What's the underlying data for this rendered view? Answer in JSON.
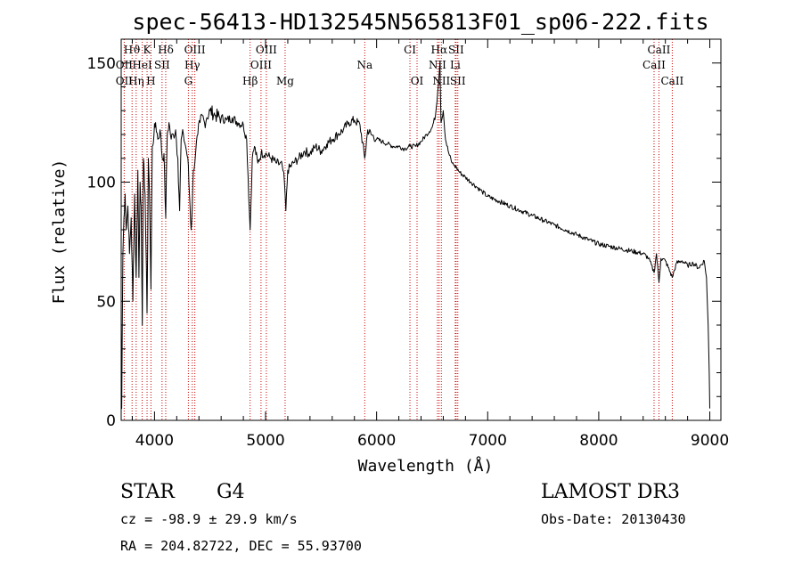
{
  "chart_data": {
    "type": "line",
    "title": "spec-56413-HD132545N565813F01_sp06-222.fits",
    "xlabel": "Wavelength (Å)",
    "ylabel": "Flux (relative)",
    "xlim": [
      3700,
      9100
    ],
    "ylim": [
      0,
      160
    ],
    "xticks": [
      4000,
      5000,
      6000,
      7000,
      8000,
      9000
    ],
    "xtick_labels": [
      "4000",
      "5000",
      "6000",
      "7000",
      "8000",
      "9000"
    ],
    "yticks": [
      0,
      50,
      100,
      150
    ],
    "ytick_labels": [
      "0",
      "50",
      "100",
      "150"
    ],
    "grid": false,
    "legend": "none",
    "colors": {
      "spectrum": "#000000",
      "lines": "#cc0000"
    },
    "series": [
      {
        "x": [
          3700,
          3705,
          3715,
          3725,
          3735,
          3745,
          3760,
          3775,
          3790,
          3805,
          3820,
          3835,
          3850,
          3860,
          3870,
          3880,
          3890,
          3900,
          3915,
          3933,
          3945,
          3955,
          3968,
          3980,
          3995,
          4010,
          4030,
          4050,
          4070,
          4085,
          4101,
          4115,
          4130,
          4150,
          4170,
          4190,
          4210,
          4226,
          4240,
          4260,
          4280,
          4300,
          4315,
          4330,
          4340,
          4350,
          4370,
          4390,
          4410,
          4430,
          4450,
          4470,
          4500,
          4550,
          4600,
          4650,
          4700,
          4750,
          4800,
          4830,
          4861,
          4880,
          4900,
          4930,
          4960,
          5000,
          5050,
          5100,
          5150,
          5170,
          5183,
          5200,
          5250,
          5300,
          5350,
          5400,
          5450,
          5500,
          5550,
          5600,
          5650,
          5700,
          5750,
          5800,
          5850,
          5893,
          5920,
          5950,
          6000,
          6050,
          6100,
          6150,
          6200,
          6250,
          6300,
          6350,
          6400,
          6450,
          6500,
          6530,
          6550,
          6563,
          6570,
          6580,
          6600,
          6620,
          6650,
          6680,
          6700,
          6720,
          6750,
          6800,
          6850,
          6900,
          6950,
          7000,
          7100,
          7200,
          7300,
          7400,
          7500,
          7600,
          7700,
          7800,
          7900,
          8000,
          8100,
          8200,
          8300,
          8400,
          8450,
          8498,
          8520,
          8542,
          8560,
          8600,
          8662,
          8700,
          8750,
          8800,
          8850,
          8900,
          8950,
          8970,
          8985,
          8995,
          9000
        ],
        "y": [
          40,
          5,
          70,
          85,
          95,
          80,
          90,
          70,
          85,
          50,
          95,
          60,
          105,
          60,
          100,
          90,
          40,
          110,
          95,
          45,
          110,
          95,
          55,
          115,
          120,
          125,
          118,
          122,
          110,
          112,
          85,
          120,
          125,
          118,
          120,
          122,
          110,
          88,
          118,
          120,
          115,
          110,
          95,
          80,
          90,
          105,
          112,
          120,
          125,
          128,
          125,
          127,
          130,
          128,
          127,
          126,
          127,
          125,
          124,
          118,
          80,
          110,
          115,
          108,
          112,
          112,
          110,
          108,
          107,
          100,
          88,
          105,
          108,
          110,
          113,
          112,
          115,
          113,
          116,
          118,
          120,
          122,
          125,
          126,
          124,
          110,
          122,
          120,
          118,
          117,
          116,
          115,
          115,
          114,
          115,
          115,
          117,
          120,
          123,
          128,
          138,
          145,
          150,
          125,
          130,
          118,
          112,
          108,
          107,
          106,
          104,
          102,
          100,
          98,
          96,
          94,
          92,
          90,
          88,
          86,
          84,
          82,
          80,
          78,
          76,
          74,
          73,
          72,
          71,
          70,
          68,
          62,
          70,
          58,
          68,
          67,
          60,
          66,
          67,
          65,
          66,
          64,
          67,
          60,
          40,
          20,
          5
        ]
      }
    ],
    "line_markers": [
      {
        "label": "Hϑ",
        "x": 3798,
        "row": 0
      },
      {
        "label": "K",
        "x": 3933,
        "row": 0
      },
      {
        "label": "Hδ",
        "x": 4101,
        "row": 0
      },
      {
        "label": "OIII",
        "x": 4363,
        "row": 0
      },
      {
        "label": "OIII",
        "x": 5007,
        "row": 0
      },
      {
        "label": "CI",
        "x": 6300,
        "row": 0
      },
      {
        "label": "Hα",
        "x": 6563,
        "row": 0
      },
      {
        "label": "SII",
        "x": 6716,
        "row": 0
      },
      {
        "label": "CaII",
        "x": 8542,
        "row": 0
      },
      {
        "label": "OII",
        "x": 3727,
        "row": 1
      },
      {
        "label": "HeI",
        "x": 3889,
        "row": 1
      },
      {
        "label": "SII",
        "x": 4068,
        "row": 1
      },
      {
        "label": "Hγ",
        "x": 4340,
        "row": 1
      },
      {
        "label": "OIII",
        "x": 4959,
        "row": 1
      },
      {
        "label": "Na",
        "x": 5893,
        "row": 1
      },
      {
        "label": "NII",
        "x": 6548,
        "row": 1
      },
      {
        "label": "Li",
        "x": 6708,
        "row": 1
      },
      {
        "label": "CaII",
        "x": 8498,
        "row": 1
      },
      {
        "label": "OII",
        "x": 3727,
        "row": 2
      },
      {
        "label": "Hη",
        "x": 3835,
        "row": 2
      },
      {
        "label": "H",
        "x": 3968,
        "row": 2
      },
      {
        "label": "G",
        "x": 4305,
        "row": 2
      },
      {
        "label": "Hβ",
        "x": 4861,
        "row": 2
      },
      {
        "label": "Mg",
        "x": 5176,
        "row": 2
      },
      {
        "label": "OI",
        "x": 6364,
        "row": 2
      },
      {
        "label": "NII",
        "x": 6583,
        "row": 2
      },
      {
        "label": "SII",
        "x": 6731,
        "row": 2
      },
      {
        "label": "CaII",
        "x": 8662,
        "row": 2
      }
    ]
  },
  "info": {
    "class": "STAR",
    "subclass": "G4",
    "survey": "LAMOST DR3",
    "cz": "cz = -98.9 ± 29.9 km/s",
    "obs_date": "Obs-Date: 20130430",
    "radec": "RA = 204.82722, DEC =  55.93700"
  }
}
